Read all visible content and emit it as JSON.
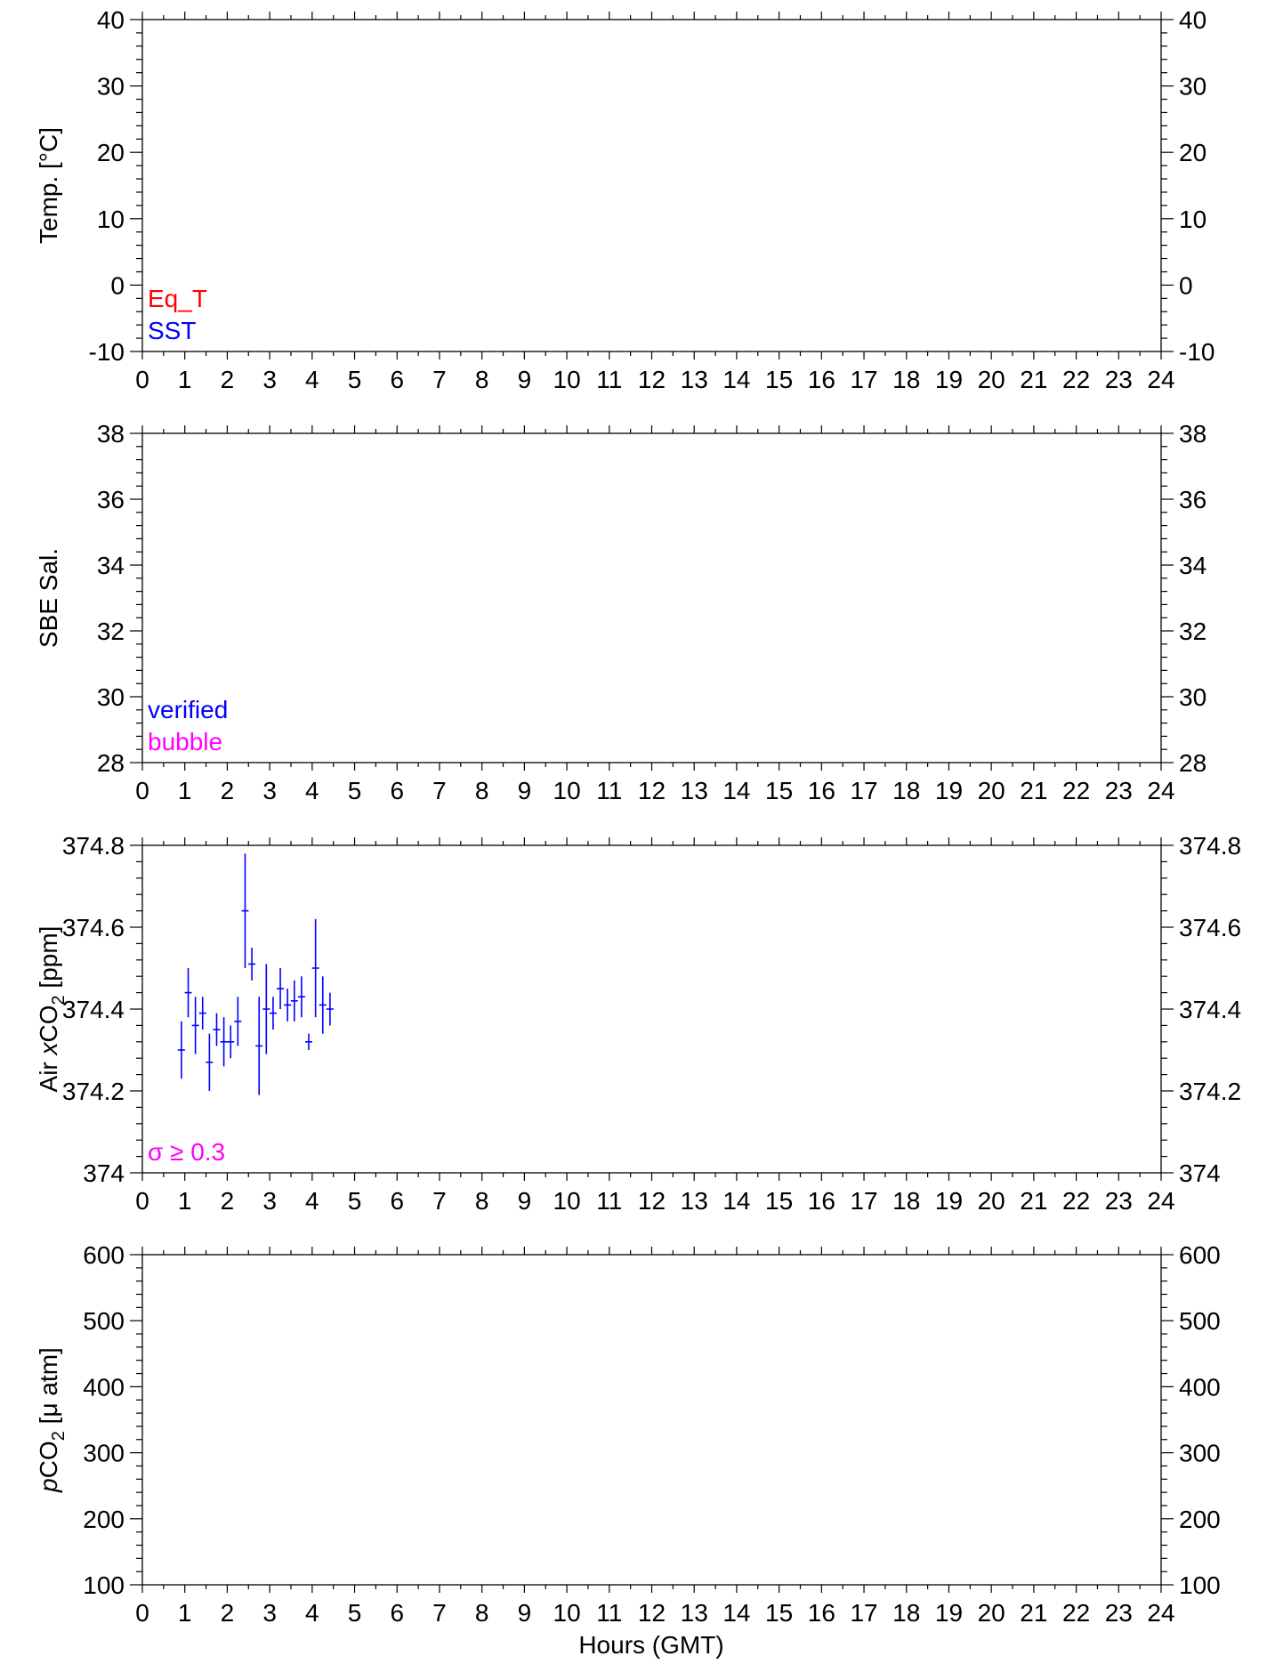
{
  "x_axis": {
    "label": "Hours (GMT)",
    "range": [
      0,
      24
    ],
    "ticks": [
      "0",
      "1",
      "2",
      "3",
      "4",
      "5",
      "6",
      "7",
      "8",
      "9",
      "10",
      "11",
      "12",
      "13",
      "14",
      "15",
      "16",
      "17",
      "18",
      "19",
      "20",
      "21",
      "22",
      "23",
      "24"
    ]
  },
  "panels": [
    {
      "id": "temp",
      "ylabel": "Temp. [°C]",
      "ylim": [
        -10,
        40
      ],
      "yticks": [
        "-10",
        "0",
        "10",
        "20",
        "30",
        "40"
      ],
      "legend": [
        {
          "text": "Eq_T",
          "color": "#ff0000"
        },
        {
          "text": "SST",
          "color": "#0000ff"
        }
      ]
    },
    {
      "id": "sal",
      "ylabel": "SBE Sal.",
      "ylim": [
        28,
        38
      ],
      "yticks": [
        "28",
        "30",
        "32",
        "34",
        "36",
        "38"
      ],
      "legend": [
        {
          "text": "verified",
          "color": "#0000ff"
        },
        {
          "text": "bubble",
          "color": "#ff00ff"
        }
      ]
    },
    {
      "id": "xco2",
      "ylabel_parts": [
        "Air ",
        "x",
        "CO",
        "2",
        " [ppm]"
      ],
      "ylim": [
        374,
        374.8
      ],
      "yticks": [
        "374",
        "374.2",
        "374.4",
        "374.6",
        "374.8"
      ],
      "legend": [
        {
          "text": "σ ≥ 0.3",
          "color": "#ff00ff"
        }
      ]
    },
    {
      "id": "pco2",
      "ylabel_parts": [
        "p",
        "CO",
        "2",
        " [μ atm]"
      ],
      "ylim": [
        100,
        600
      ],
      "yticks": [
        "100",
        "200",
        "300",
        "400",
        "500",
        "600"
      ],
      "legend": []
    }
  ],
  "chart_data": {
    "type": "scatter",
    "panel": "xco2",
    "series_color": "#0000ff",
    "x": [
      0.92,
      1.08,
      1.25,
      1.42,
      1.58,
      1.75,
      1.92,
      2.08,
      2.25,
      2.42,
      2.58,
      2.75,
      2.92,
      3.08,
      3.25,
      3.42,
      3.58,
      3.75,
      3.92,
      4.08,
      4.25,
      4.42
    ],
    "y": [
      374.3,
      374.44,
      374.36,
      374.39,
      374.27,
      374.35,
      374.32,
      374.32,
      374.37,
      374.64,
      374.51,
      374.31,
      374.4,
      374.39,
      374.45,
      374.41,
      374.42,
      374.43,
      374.32,
      374.5,
      374.41,
      374.4
    ],
    "y_err": [
      0.07,
      0.06,
      0.07,
      0.04,
      0.07,
      0.04,
      0.06,
      0.04,
      0.06,
      0.14,
      0.04,
      0.12,
      0.11,
      0.04,
      0.05,
      0.04,
      0.05,
      0.05,
      0.02,
      0.12,
      0.07,
      0.04
    ]
  }
}
